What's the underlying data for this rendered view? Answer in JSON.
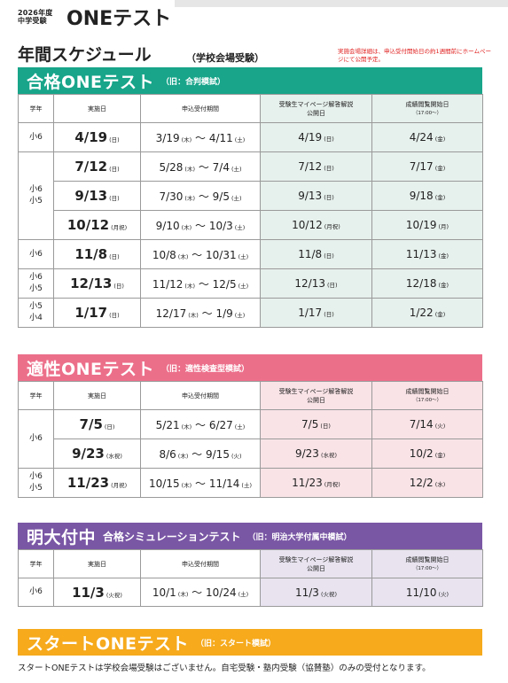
{
  "brand": {
    "year": "2026年度",
    "exam": "中学受験",
    "name": "ONEテスト"
  },
  "page": {
    "title": "年間スケジュール",
    "subtitle": "（学校会場受験）",
    "note": "実施会場詳細は、申込受付開始日の約1週間前にホームページにて公開予定。"
  },
  "columns": {
    "grade": "学年",
    "date": "実施日",
    "period": "申込受付期間",
    "pub": "受験生マイページ解答解説公開日",
    "res": "成績閲覧開始日",
    "res_sub": "（17:00〜）"
  },
  "colors": {
    "goukaku": "#18a58a",
    "tekisei": "#ec6f8a",
    "meidai": "#7a57a5",
    "start": "#f6aa1c"
  },
  "goukaku": {
    "title": "合格ONEテスト",
    "sub": "（旧：合判模試）",
    "rows": [
      {
        "grade": "小6",
        "date": "4/19",
        "date_dw": "(日)",
        "p1": "3/19",
        "p1_dw": "(木)",
        "p2": "4/11",
        "p2_dw": "(土)",
        "pub": "4/19",
        "pub_dw": "(日)",
        "res": "4/24",
        "res_dw": "(金)"
      },
      {
        "grade": "小6\n小5",
        "date": "7/12",
        "date_dw": "(日)",
        "p1": "5/28",
        "p1_dw": "(木)",
        "p2": "7/4",
        "p2_dw": "(土)",
        "pub": "7/12",
        "pub_dw": "(日)",
        "res": "7/17",
        "res_dw": "(金)"
      },
      {
        "grade": "",
        "date": "9/13",
        "date_dw": "(日)",
        "p1": "7/30",
        "p1_dw": "(木)",
        "p2": "9/5",
        "p2_dw": "(土)",
        "pub": "9/13",
        "pub_dw": "(日)",
        "res": "9/18",
        "res_dw": "(金)"
      },
      {
        "grade": "",
        "date": "10/12",
        "date_dw": "(月祝)",
        "p1": "9/10",
        "p1_dw": "(木)",
        "p2": "10/3",
        "p2_dw": "(土)",
        "pub": "10/12",
        "pub_dw": "(月祝)",
        "res": "10/19",
        "res_dw": "(月)"
      },
      {
        "grade": "小6",
        "date": "11/8",
        "date_dw": "(日)",
        "p1": "10/8",
        "p1_dw": "(木)",
        "p2": "10/31",
        "p2_dw": "(土)",
        "pub": "11/8",
        "pub_dw": "(日)",
        "res": "11/13",
        "res_dw": "(金)"
      },
      {
        "grade": "小6\n小5",
        "date": "12/13",
        "date_dw": "(日)",
        "p1": "11/12",
        "p1_dw": "(木)",
        "p2": "12/5",
        "p2_dw": "(土)",
        "pub": "12/13",
        "pub_dw": "(日)",
        "res": "12/18",
        "res_dw": "(金)"
      },
      {
        "grade": "小5\n小4",
        "date": "1/17",
        "date_dw": "(日)",
        "p1": "12/17",
        "p1_dw": "(木)",
        "p2": "1/9",
        "p2_dw": "(土)",
        "pub": "1/17",
        "pub_dw": "(日)",
        "res": "1/22",
        "res_dw": "(金)"
      }
    ]
  },
  "tekisei": {
    "title": "適性ONEテスト",
    "sub": "（旧：適性検査型模試）",
    "rows": [
      {
        "grade": "小6",
        "date": "7/5",
        "date_dw": "(日)",
        "p1": "5/21",
        "p1_dw": "(木)",
        "p2": "6/27",
        "p2_dw": "(土)",
        "pub": "7/5",
        "pub_dw": "(日)",
        "res": "7/14",
        "res_dw": "(火)"
      },
      {
        "grade": "",
        "date": "9/23",
        "date_dw": "(水祝)",
        "p1": "8/6",
        "p1_dw": "(木)",
        "p2": "9/15",
        "p2_dw": "(火)",
        "pub": "9/23",
        "pub_dw": "(水祝)",
        "res": "10/2",
        "res_dw": "(金)"
      },
      {
        "grade": "小6\n小5",
        "date": "11/23",
        "date_dw": "(月祝)",
        "p1": "10/15",
        "p1_dw": "(木)",
        "p2": "11/14",
        "p2_dw": "(土)",
        "pub": "11/23",
        "pub_dw": "(月祝)",
        "res": "12/2",
        "res_dw": "(水)"
      }
    ]
  },
  "meidai": {
    "title": "明大付中",
    "title2": "合格シミュレーションテスト",
    "sub": "（旧：明治大学付属中模試）",
    "rows": [
      {
        "grade": "小6",
        "date": "11/3",
        "date_dw": "(火祝)",
        "p1": "10/1",
        "p1_dw": "(木)",
        "p2": "10/24",
        "p2_dw": "(土)",
        "pub": "11/3",
        "pub_dw": "(火祝)",
        "res": "11/10",
        "res_dw": "(火)"
      }
    ]
  },
  "start": {
    "title": "スタートONEテスト",
    "sub": "（旧：スタート模試）",
    "note": "スタートONEテストは学校会場受験はございません。自宅受験・塾内受験（協賛塾）のみの受付となります。"
  }
}
